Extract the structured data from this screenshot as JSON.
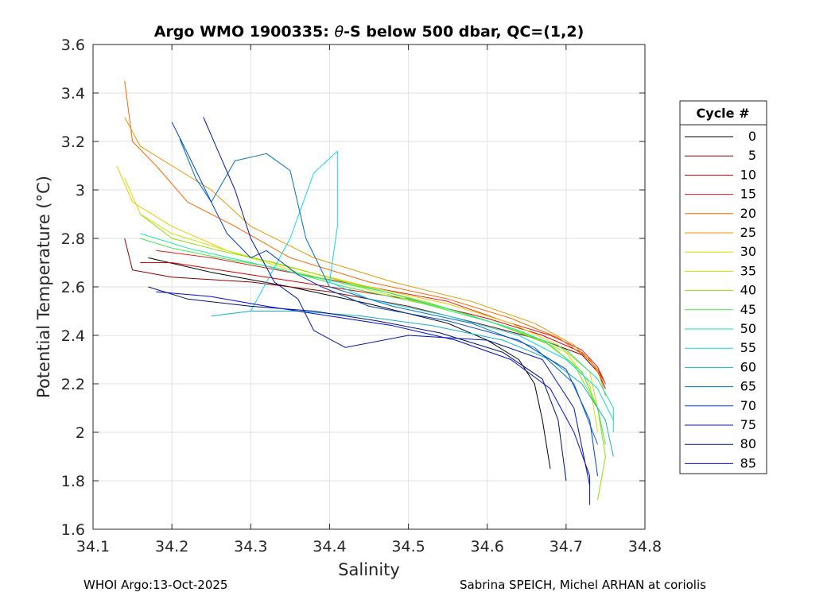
{
  "chart_data": {
    "type": "line",
    "title_prefix": "Argo WMO 1900335: ",
    "title_theta": "θ",
    "title_suffix": "-S below 500 dbar,  QC=(1,2)",
    "xlabel": "Salinity",
    "ylabel": "Potential Temperature (°C)",
    "xlim": [
      34.1,
      34.8
    ],
    "ylim": [
      1.6,
      3.6
    ],
    "xticks": [
      "34.1",
      "34.2",
      "34.3",
      "34.4",
      "34.5",
      "34.6",
      "34.7",
      "34.8"
    ],
    "yticks": [
      "1.6",
      "1.8",
      "2",
      "2.2",
      "2.4",
      "2.6",
      "2.8",
      "3",
      "3.2",
      "3.4",
      "3.6"
    ],
    "grid": true,
    "legend": {
      "title": "Cycle #",
      "placement": "outside-right",
      "entries": [
        {
          "label": "0",
          "color": "#000000"
        },
        {
          "label": "5",
          "color": "#8b0000"
        },
        {
          "label": "10",
          "color": "#d40000"
        },
        {
          "label": "15",
          "color": "#e02020"
        },
        {
          "label": "20",
          "color": "#ff6600"
        },
        {
          "label": "25",
          "color": "#e39a00"
        },
        {
          "label": "30",
          "color": "#e8d000"
        },
        {
          "label": "35",
          "color": "#c8e800"
        },
        {
          "label": "40",
          "color": "#8ee000"
        },
        {
          "label": "45",
          "color": "#44e844"
        },
        {
          "label": "50",
          "color": "#10e8a8"
        },
        {
          "label": "55",
          "color": "#10d8e8"
        },
        {
          "label": "60",
          "color": "#10b0c8"
        },
        {
          "label": "65",
          "color": "#0070c0"
        },
        {
          "label": "70",
          "color": "#0040c0"
        },
        {
          "label": "75",
          "color": "#0018a8"
        },
        {
          "label": "80",
          "color": "#001070"
        },
        {
          "label": "85",
          "color": "#0008d8"
        }
      ]
    },
    "series": [
      {
        "name": "0",
        "color": "#000000",
        "x": [
          34.17,
          34.25,
          34.35,
          34.45,
          34.55,
          34.6,
          34.64,
          34.66,
          34.67,
          34.68
        ],
        "y": [
          2.72,
          2.66,
          2.6,
          2.53,
          2.45,
          2.38,
          2.3,
          2.2,
          2.05,
          1.85
        ]
      },
      {
        "name": "5",
        "color": "#8b0000",
        "x": [
          34.14,
          34.15,
          34.2,
          34.3,
          34.4,
          34.5,
          34.6,
          34.67,
          34.72,
          34.74,
          34.75
        ],
        "y": [
          2.8,
          2.67,
          2.64,
          2.62,
          2.58,
          2.52,
          2.44,
          2.38,
          2.32,
          2.25,
          2.18
        ]
      },
      {
        "name": "10",
        "color": "#d40000",
        "x": [
          34.16,
          34.2,
          34.3,
          34.4,
          34.5,
          34.6,
          34.67,
          34.72,
          34.74,
          34.75
        ],
        "y": [
          2.7,
          2.7,
          2.65,
          2.6,
          2.55,
          2.47,
          2.4,
          2.33,
          2.26,
          2.2
        ]
      },
      {
        "name": "15",
        "color": "#e02020",
        "x": [
          34.18,
          34.25,
          34.35,
          34.45,
          34.55,
          34.62,
          34.68,
          34.72,
          34.74,
          34.75
        ],
        "y": [
          2.75,
          2.72,
          2.66,
          2.6,
          2.54,
          2.46,
          2.4,
          2.34,
          2.27,
          2.2
        ]
      },
      {
        "name": "20",
        "color": "#ff6600",
        "x": [
          34.14,
          34.15,
          34.18,
          34.22,
          34.28,
          34.35,
          34.45,
          34.55,
          34.63,
          34.69,
          34.73,
          34.75
        ],
        "y": [
          3.45,
          3.2,
          3.1,
          2.95,
          2.85,
          2.72,
          2.62,
          2.55,
          2.47,
          2.39,
          2.3,
          2.2
        ]
      },
      {
        "name": "25",
        "color": "#e39a00",
        "x": [
          34.14,
          34.16,
          34.2,
          34.25,
          34.3,
          34.38,
          34.48,
          34.58,
          34.66,
          34.71,
          34.74,
          34.75
        ],
        "y": [
          3.3,
          3.18,
          3.1,
          3.0,
          2.85,
          2.72,
          2.62,
          2.54,
          2.45,
          2.36,
          2.26,
          2.15
        ]
      },
      {
        "name": "30",
        "color": "#e8d000",
        "x": [
          34.13,
          34.15,
          34.2,
          34.27,
          34.35,
          34.45,
          34.55,
          34.63,
          34.69,
          34.73,
          34.74
        ],
        "y": [
          3.1,
          2.95,
          2.85,
          2.75,
          2.68,
          2.6,
          2.53,
          2.45,
          2.36,
          2.25,
          2.1
        ]
      },
      {
        "name": "35",
        "color": "#c8e800",
        "x": [
          34.14,
          34.16,
          34.2,
          34.28,
          34.36,
          34.46,
          34.56,
          34.64,
          34.7,
          34.73,
          34.74
        ],
        "y": [
          3.05,
          2.9,
          2.82,
          2.74,
          2.66,
          2.58,
          2.5,
          2.42,
          2.33,
          2.2,
          2.0
        ]
      },
      {
        "name": "40",
        "color": "#8ee000",
        "x": [
          34.16,
          34.2,
          34.26,
          34.33,
          34.42,
          34.52,
          34.6,
          34.67,
          34.71,
          34.74,
          34.75,
          34.74
        ],
        "y": [
          2.9,
          2.8,
          2.75,
          2.7,
          2.62,
          2.54,
          2.46,
          2.38,
          2.28,
          2.1,
          1.9,
          1.72
        ]
      },
      {
        "name": "45",
        "color": "#44e844",
        "x": [
          34.16,
          34.2,
          34.26,
          34.33,
          34.42,
          34.52,
          34.61,
          34.68,
          34.72,
          34.74,
          34.75
        ],
        "y": [
          2.8,
          2.76,
          2.72,
          2.68,
          2.6,
          2.53,
          2.45,
          2.36,
          2.25,
          2.1,
          1.95
        ]
      },
      {
        "name": "50",
        "color": "#10e8a8",
        "x": [
          34.16,
          34.22,
          34.3,
          34.38,
          34.47,
          34.56,
          34.64,
          34.7,
          34.74,
          34.76,
          34.76
        ],
        "y": [
          2.82,
          2.76,
          2.7,
          2.64,
          2.58,
          2.5,
          2.42,
          2.34,
          2.22,
          2.1,
          2.0
        ]
      },
      {
        "name": "55",
        "color": "#10d8e8",
        "x": [
          34.3,
          34.35,
          34.38,
          34.41,
          34.41,
          34.4,
          34.45,
          34.55,
          34.64,
          34.7,
          34.74,
          34.76
        ],
        "y": [
          2.5,
          2.8,
          3.07,
          3.16,
          2.85,
          2.62,
          2.55,
          2.48,
          2.4,
          2.3,
          2.18,
          2.05
        ]
      },
      {
        "name": "60",
        "color": "#10b0c8",
        "x": [
          34.25,
          34.3,
          34.36,
          34.44,
          34.53,
          34.62,
          34.68,
          34.72,
          34.75,
          34.76
        ],
        "y": [
          2.48,
          2.5,
          2.5,
          2.48,
          2.44,
          2.38,
          2.3,
          2.2,
          2.05,
          1.9
        ]
      },
      {
        "name": "65",
        "color": "#0070c0",
        "x": [
          34.21,
          34.23,
          34.25,
          34.28,
          34.32,
          34.35,
          34.37,
          34.4,
          34.48,
          34.58,
          34.66,
          34.71,
          34.74
        ],
        "y": [
          3.21,
          3.05,
          2.95,
          3.12,
          3.15,
          3.08,
          2.8,
          2.6,
          2.52,
          2.45,
          2.35,
          2.2,
          1.95
        ]
      },
      {
        "name": "70",
        "color": "#0040c0",
        "x": [
          34.2,
          34.22,
          34.25,
          34.27,
          34.3,
          34.32,
          34.34,
          34.36,
          34.39,
          34.45,
          34.55,
          34.64,
          34.7,
          34.73,
          34.74
        ],
        "y": [
          3.28,
          3.15,
          2.95,
          2.82,
          2.72,
          2.75,
          2.7,
          2.65,
          2.6,
          2.52,
          2.46,
          2.38,
          2.26,
          2.05,
          1.82
        ]
      },
      {
        "name": "75",
        "color": "#0018a8",
        "x": [
          34.24,
          34.26,
          34.28,
          34.3,
          34.33,
          34.36,
          34.38,
          34.42,
          34.5,
          34.6,
          34.67,
          34.71,
          34.73
        ],
        "y": [
          3.3,
          3.15,
          3.0,
          2.8,
          2.62,
          2.55,
          2.42,
          2.35,
          2.4,
          2.38,
          2.3,
          2.1,
          1.78
        ]
      },
      {
        "name": "80",
        "color": "#001070",
        "x": [
          34.17,
          34.22,
          34.3,
          34.38,
          34.46,
          34.54,
          34.62,
          34.67,
          34.69,
          34.7
        ],
        "y": [
          2.6,
          2.55,
          2.52,
          2.5,
          2.46,
          2.41,
          2.33,
          2.22,
          2.05,
          1.8
        ]
      },
      {
        "name": "85",
        "color": "#0008d8",
        "x": [
          34.18,
          34.25,
          34.32,
          34.4,
          34.48,
          34.56,
          34.63,
          34.68,
          34.71,
          34.73,
          34.73
        ],
        "y": [
          2.58,
          2.56,
          2.52,
          2.48,
          2.44,
          2.38,
          2.3,
          2.18,
          2.0,
          1.82,
          1.7
        ]
      }
    ]
  },
  "footer": {
    "left": "WHOI Argo:13-Oct-2025",
    "right": "Sabrina SPEICH, Michel ARHAN at coriolis"
  }
}
